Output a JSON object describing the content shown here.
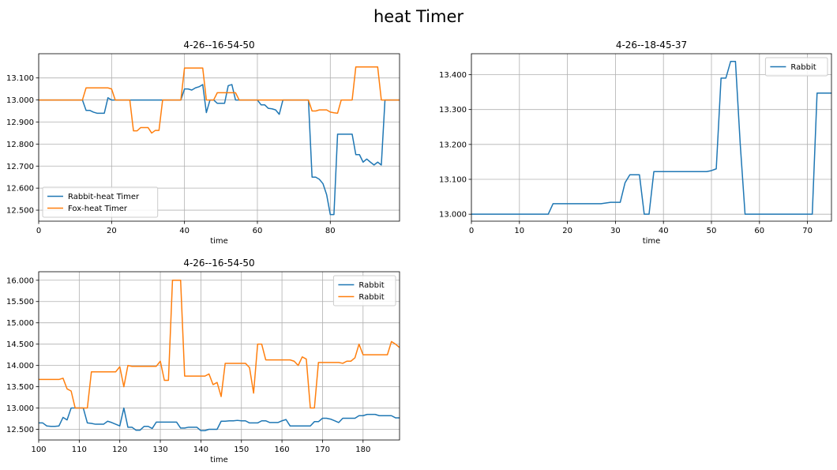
{
  "figure": {
    "title": "heat Timer"
  },
  "chart_data": [
    {
      "type": "line",
      "title": "4-26--16-54-50",
      "xlabel": "time",
      "ylabel": "",
      "xlim": [
        0,
        99
      ],
      "ylim": [
        12.45,
        13.21
      ],
      "xticks": [
        "0",
        "20",
        "40",
        "60",
        "80"
      ],
      "xtick_values": [
        0,
        20,
        40,
        60,
        80
      ],
      "yticks": [
        "12.500",
        "12.600",
        "12.700",
        "12.800",
        "12.900",
        "13.000",
        "13.100"
      ],
      "ytick_values": [
        12.5,
        12.6,
        12.7,
        12.8,
        12.9,
        13.0,
        13.1
      ],
      "grid": true,
      "legend": "lower-left",
      "series": [
        {
          "name": "Rabbit-heat Timer",
          "color": "#1f77b4",
          "x": [
            0,
            12,
            13,
            14,
            15,
            16,
            17,
            18,
            19,
            20,
            21,
            22,
            23,
            24,
            25,
            26,
            27,
            28,
            29,
            30,
            31,
            32,
            33,
            34,
            35,
            36,
            37,
            38,
            39,
            40,
            41,
            42,
            43,
            44,
            45,
            46,
            47,
            48,
            49,
            50,
            51,
            52,
            53,
            54,
            55,
            56,
            57,
            58,
            59,
            60,
            61,
            62,
            63,
            64,
            65,
            66,
            67,
            68,
            69,
            70,
            71,
            72,
            73,
            74,
            75,
            76,
            77,
            78,
            79,
            80,
            81,
            82,
            83,
            84,
            85,
            86,
            87,
            88,
            89,
            90,
            91,
            92,
            93,
            94,
            95,
            96,
            97,
            98,
            99
          ],
          "y": [
            13.0,
            13.0,
            12.953,
            12.953,
            12.945,
            12.94,
            12.94,
            12.94,
            13.01,
            13.0,
            13.0,
            13.0,
            13.0,
            13.0,
            13.0,
            13.0,
            13.0,
            13.0,
            13.0,
            13.0,
            13.0,
            13.0,
            13.0,
            13.0,
            13.0,
            13.0,
            13.0,
            13.0,
            13.0,
            13.05,
            13.05,
            13.045,
            13.055,
            13.06,
            13.07,
            12.943,
            13.0,
            13.0,
            12.985,
            12.985,
            12.985,
            13.065,
            13.07,
            13.0,
            13.0,
            13.0,
            13.0,
            13.0,
            13.0,
            13.0,
            12.978,
            12.978,
            12.962,
            12.96,
            12.955,
            12.935,
            13.0,
            13.0,
            13.0,
            13.0,
            13.0,
            13.0,
            13.0,
            13.0,
            12.65,
            12.65,
            12.64,
            12.62,
            12.57,
            12.48,
            12.48,
            12.845,
            12.845,
            12.845,
            12.845,
            12.845,
            12.752,
            12.752,
            12.718,
            12.732,
            12.718,
            12.705,
            12.718,
            12.705,
            13.0,
            13.0,
            13.0,
            13.0,
            13.0
          ]
        },
        {
          "name": "Fox-heat Timer",
          "color": "#ff7f0e",
          "x": [
            0,
            12,
            13,
            14,
            15,
            16,
            17,
            18,
            19,
            20,
            21,
            22,
            23,
            24,
            25,
            26,
            27,
            28,
            29,
            30,
            31,
            32,
            33,
            34,
            35,
            36,
            37,
            38,
            39,
            40,
            41,
            42,
            43,
            44,
            45,
            46,
            47,
            48,
            49,
            50,
            51,
            52,
            53,
            54,
            55,
            56,
            57,
            58,
            59,
            60,
            61,
            62,
            63,
            64,
            65,
            66,
            67,
            68,
            69,
            70,
            71,
            72,
            73,
            74,
            75,
            76,
            77,
            78,
            79,
            80,
            81,
            82,
            83,
            84,
            85,
            86,
            87,
            88,
            89,
            90,
            91,
            92,
            93,
            94,
            95,
            96,
            97,
            98,
            99
          ],
          "y": [
            13.0,
            13.0,
            13.055,
            13.055,
            13.055,
            13.055,
            13.055,
            13.055,
            13.055,
            13.05,
            13.0,
            13.0,
            13.0,
            13.0,
            13.0,
            12.86,
            12.86,
            12.875,
            12.875,
            12.875,
            12.85,
            12.862,
            12.862,
            13.0,
            13.0,
            13.0,
            13.0,
            13.0,
            13.0,
            13.145,
            13.145,
            13.145,
            13.145,
            13.145,
            13.145,
            13.0,
            13.0,
            13.0,
            13.033,
            13.033,
            13.033,
            13.033,
            13.033,
            13.033,
            13.0,
            13.0,
            13.0,
            13.0,
            13.0,
            13.0,
            13.0,
            13.0,
            13.0,
            13.0,
            13.0,
            13.0,
            13.0,
            13.0,
            13.0,
            13.0,
            13.0,
            13.0,
            13.0,
            13.0,
            12.95,
            12.95,
            12.955,
            12.955,
            12.955,
            12.945,
            12.942,
            12.94,
            13.0,
            13.0,
            13.0,
            13.0,
            13.15,
            13.15,
            13.15,
            13.15,
            13.15,
            13.15,
            13.15,
            13.0,
            13.0,
            13.0,
            13.0,
            13.0,
            13.0
          ]
        }
      ]
    },
    {
      "type": "line",
      "title": "4-26--18-45-37",
      "xlabel": "time",
      "ylabel": "",
      "xlim": [
        0,
        75
      ],
      "ylim": [
        12.98,
        13.46
      ],
      "xticks": [
        "0",
        "10",
        "20",
        "30",
        "40",
        "50",
        "60",
        "70"
      ],
      "xtick_values": [
        0,
        10,
        20,
        30,
        40,
        50,
        60,
        70
      ],
      "yticks": [
        "13.000",
        "13.100",
        "13.200",
        "13.300",
        "13.400"
      ],
      "ytick_values": [
        13.0,
        13.1,
        13.2,
        13.3,
        13.4
      ],
      "grid": true,
      "legend": "top-right",
      "series": [
        {
          "name": "Rabbit",
          "color": "#1f77b4",
          "x": [
            0,
            16,
            17,
            27,
            28,
            29,
            30,
            31,
            32,
            33,
            34,
            35,
            36,
            37,
            38,
            39,
            49,
            50,
            51,
            52,
            53,
            54,
            55,
            56,
            57,
            70,
            71,
            72,
            75
          ],
          "y": [
            13.0,
            13.0,
            13.03,
            13.03,
            13.032,
            13.034,
            13.034,
            13.034,
            13.09,
            13.113,
            13.113,
            13.113,
            13.0,
            13.0,
            13.122,
            13.122,
            13.122,
            13.125,
            13.13,
            13.39,
            13.39,
            13.438,
            13.438,
            13.2,
            13.0,
            13.0,
            13.0,
            13.347,
            13.347
          ]
        }
      ]
    },
    {
      "type": "line",
      "title": "4-26--16-54-50",
      "xlabel": "time",
      "ylabel": "",
      "xlim": [
        100,
        189
      ],
      "ylim": [
        12.25,
        16.2
      ],
      "xticks": [
        "100",
        "110",
        "120",
        "130",
        "140",
        "150",
        "160",
        "170",
        "180"
      ],
      "xtick_values": [
        100,
        110,
        120,
        130,
        140,
        150,
        160,
        170,
        180
      ],
      "yticks": [
        "12.500",
        "13.000",
        "13.500",
        "14.000",
        "14.500",
        "15.000",
        "15.500",
        "16.000"
      ],
      "ytick_values": [
        12.5,
        13.0,
        13.5,
        14.0,
        14.5,
        15.0,
        15.5,
        16.0
      ],
      "grid": true,
      "legend": "top-right",
      "series": [
        {
          "name": "Rabbit",
          "color": "#1f77b4",
          "x": [
            100,
            101,
            102,
            103,
            104,
            105,
            106,
            107,
            108,
            109,
            110,
            111,
            112,
            113,
            114,
            115,
            116,
            117,
            118,
            119,
            120,
            121,
            122,
            123,
            124,
            125,
            126,
            127,
            128,
            129,
            130,
            131,
            132,
            133,
            134,
            135,
            136,
            137,
            138,
            139,
            140,
            141,
            142,
            143,
            144,
            145,
            146,
            147,
            148,
            149,
            150,
            151,
            152,
            153,
            154,
            155,
            156,
            157,
            158,
            159,
            160,
            161,
            162,
            163,
            164,
            165,
            166,
            167,
            168,
            169,
            170,
            171,
            172,
            173,
            174,
            175,
            176,
            177,
            178,
            179,
            180,
            181,
            182,
            183,
            184,
            185,
            186,
            187,
            188,
            189
          ],
          "y": [
            12.65,
            12.65,
            12.58,
            12.57,
            12.57,
            12.58,
            12.78,
            12.72,
            13.0,
            13.0,
            13.0,
            13.0,
            12.65,
            12.64,
            12.62,
            12.62,
            12.62,
            12.69,
            12.66,
            12.62,
            12.58,
            13.0,
            12.55,
            12.55,
            12.48,
            12.48,
            12.57,
            12.57,
            12.52,
            12.67,
            12.67,
            12.67,
            12.67,
            12.67,
            12.67,
            12.53,
            12.53,
            12.55,
            12.55,
            12.55,
            12.47,
            12.47,
            12.5,
            12.5,
            12.5,
            12.69,
            12.69,
            12.7,
            12.7,
            12.71,
            12.7,
            12.7,
            12.65,
            12.65,
            12.65,
            12.7,
            12.7,
            12.66,
            12.66,
            12.66,
            12.7,
            12.73,
            12.58,
            12.58,
            12.58,
            12.58,
            12.58,
            12.58,
            12.68,
            12.68,
            12.76,
            12.76,
            12.74,
            12.7,
            12.66,
            12.76,
            12.76,
            12.76,
            12.76,
            12.82,
            12.82,
            12.85,
            12.85,
            12.85,
            12.82,
            12.82,
            12.82,
            12.82,
            12.77,
            12.77
          ]
        },
        {
          "name": "Rabbit",
          "color": "#ff7f0e",
          "x": [
            100,
            101,
            102,
            103,
            104,
            105,
            106,
            107,
            108,
            109,
            110,
            111,
            112,
            113,
            114,
            115,
            116,
            117,
            118,
            119,
            120,
            121,
            122,
            123,
            124,
            125,
            126,
            127,
            128,
            129,
            130,
            131,
            132,
            133,
            134,
            135,
            136,
            137,
            138,
            139,
            140,
            141,
            142,
            143,
            144,
            145,
            146,
            147,
            148,
            149,
            150,
            151,
            152,
            153,
            154,
            155,
            156,
            157,
            158,
            159,
            160,
            161,
            162,
            163,
            164,
            165,
            166,
            167,
            168,
            169,
            170,
            171,
            172,
            173,
            174,
            175,
            176,
            177,
            178,
            179,
            180,
            181,
            182,
            183,
            184,
            185,
            186,
            187,
            188,
            189
          ],
          "y": [
            13.67,
            13.67,
            13.67,
            13.67,
            13.67,
            13.67,
            13.7,
            13.45,
            13.4,
            13.0,
            13.0,
            13.0,
            13.0,
            13.85,
            13.85,
            13.85,
            13.85,
            13.85,
            13.85,
            13.85,
            13.97,
            13.5,
            14.0,
            13.98,
            13.98,
            13.98,
            13.98,
            13.98,
            13.98,
            13.98,
            14.1,
            13.65,
            13.65,
            16.0,
            16.0,
            16.0,
            13.75,
            13.75,
            13.75,
            13.75,
            13.75,
            13.75,
            13.8,
            13.55,
            13.6,
            13.27,
            14.05,
            14.05,
            14.05,
            14.05,
            14.05,
            14.05,
            13.95,
            13.35,
            14.5,
            14.5,
            14.13,
            14.13,
            14.13,
            14.13,
            14.13,
            14.13,
            14.13,
            14.1,
            14.0,
            14.2,
            14.15,
            13.0,
            13.0,
            14.07,
            14.07,
            14.07,
            14.07,
            14.07,
            14.07,
            14.05,
            14.1,
            14.1,
            14.18,
            14.5,
            14.25,
            14.25,
            14.25,
            14.25,
            14.25,
            14.25,
            14.25,
            14.56,
            14.5,
            14.42
          ]
        }
      ]
    }
  ]
}
